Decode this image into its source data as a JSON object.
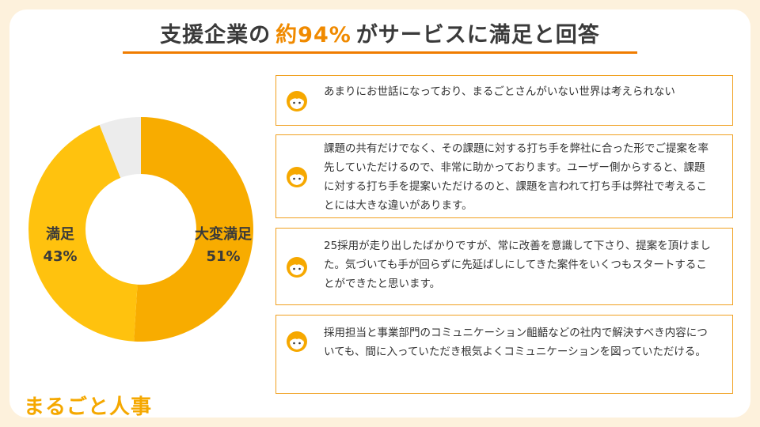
{
  "title": {
    "prefix": "支援企業の",
    "highlight": "約94%",
    "suffix": "がサービスに満足と回答"
  },
  "chart_data": {
    "type": "pie",
    "variant": "donut",
    "slices": [
      {
        "label": "大変満足",
        "value": 51,
        "value_label": "51%",
        "color": "#f8ac00"
      },
      {
        "label": "満足",
        "value": 43,
        "value_label": "43%",
        "color": "#ffc20e"
      },
      {
        "label": "",
        "value": 6,
        "value_label": "",
        "color": "#ececec"
      }
    ]
  },
  "quotes": [
    {
      "icon": "face-icon",
      "text": "あまりにお世話になっており、まるごとさんがいない世界は考えられない"
    },
    {
      "icon": "face-icon",
      "text": "課題の共有だけでなく、その課題に対する打ち手を弊社に合った形でご提案を率先していただけるので、非常に助かっております。ユーザー側からすると、課題に対する打ち手を提案いただけるのと、課題を言われて打ち手は弊社で考えることには大きな違いがあります。"
    },
    {
      "icon": "face-icon",
      "text": "25採用が走り出したばかりですが、常に改善を意識して下さり、提案を頂けました。気づいても手が回らずに先延ばしにしてきた案件をいくつもスタートすることができたと思います。"
    },
    {
      "icon": "face-icon",
      "text": "採用担当と事業部門のコミュニケーション齟齬などの社内で解決すべき内容についても、間に入っていただき根気よくコミュニケーションを図っていただける。"
    }
  ],
  "brand": "まるごと人事"
}
